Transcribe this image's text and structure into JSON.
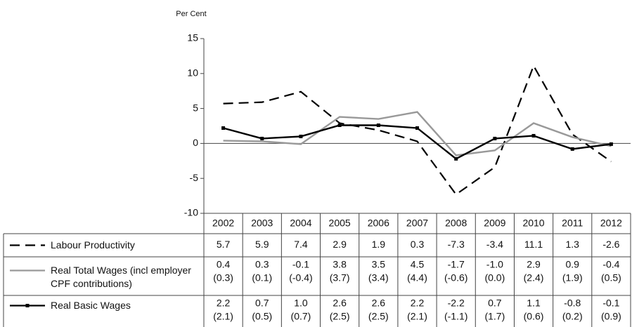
{
  "chart_data": {
    "type": "line",
    "y_label": "Per Cent",
    "categories": [
      "2002",
      "2003",
      "2004",
      "2005",
      "2006",
      "2007",
      "2008",
      "2009",
      "2010",
      "2011",
      "2012"
    ],
    "ylim": [
      -10,
      15
    ],
    "yticks": [
      -10,
      -5,
      0,
      5,
      10,
      15
    ],
    "series": [
      {
        "name": "Labour Productivity",
        "color": "#000000",
        "style": "dashed",
        "values": [
          5.7,
          5.9,
          7.4,
          2.9,
          1.9,
          0.3,
          -7.3,
          -3.4,
          11.1,
          1.3,
          -2.6
        ],
        "value_labels": [
          "5.7",
          "5.9",
          "7.4",
          "2.9",
          "1.9",
          "0.3",
          "-7.3",
          "-3.4",
          "11.1",
          "1.3",
          "-2.6"
        ]
      },
      {
        "name": "Real Total Wages (incl employer CPF contributions)",
        "color": "#999999",
        "style": "solid",
        "values": [
          0.4,
          0.3,
          -0.1,
          3.8,
          3.5,
          4.5,
          -1.7,
          -1.0,
          2.9,
          0.9,
          -0.4
        ],
        "value_labels": [
          "0.4",
          "0.3",
          "-0.1",
          "3.8",
          "3.5",
          "4.5",
          "-1.7",
          "-1.0",
          "2.9",
          "0.9",
          "-0.4"
        ],
        "sub_labels": [
          "(0.3)",
          "(0.1)",
          "(-0.4)",
          "(3.7)",
          "(3.4)",
          "(4.4)",
          "(-0.6)",
          "(0.0)",
          "(2.4)",
          "(1.9)",
          "(0.5)"
        ]
      },
      {
        "name": "Real Basic Wages",
        "color": "#000000",
        "style": "markers",
        "values": [
          2.2,
          0.7,
          1.0,
          2.6,
          2.6,
          2.2,
          -2.2,
          0.7,
          1.1,
          -0.8,
          -0.1
        ],
        "value_labels": [
          "2.2",
          "0.7",
          "1.0",
          "2.6",
          "2.6",
          "2.2",
          "-2.2",
          "0.7",
          "1.1",
          "-0.8",
          "-0.1"
        ],
        "sub_labels": [
          "(2.1)",
          "(0.5)",
          "(0.7)",
          "(2.5)",
          "(2.5)",
          "(2.1)",
          "(-1.1)",
          "(1.7)",
          "(0.6)",
          "(0.2)",
          "(0.9)"
        ]
      }
    ]
  }
}
